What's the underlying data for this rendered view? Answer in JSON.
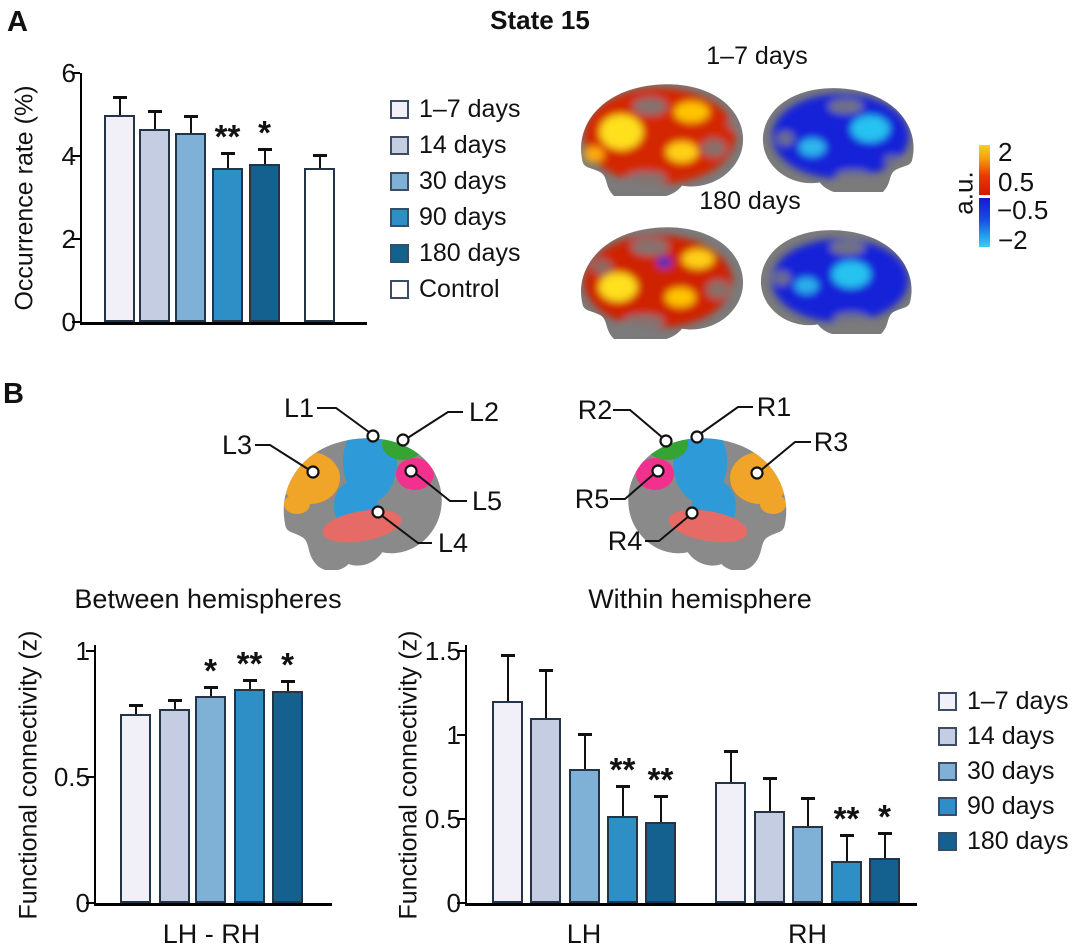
{
  "figure": {
    "panel_a_label": "A",
    "panel_b_label": "B",
    "title": "State 15"
  },
  "bar_colors": [
    "#f1eff7",
    "#c5cde3",
    "#7fb1d6",
    "#2e8fc6",
    "#14608f",
    "#ffffff"
  ],
  "bar_border_color": "#243447",
  "panel_a": {
    "legend_labels": [
      "1–7 days",
      "14 days",
      "30 days",
      "90 days",
      "180 days",
      "Control"
    ],
    "brain_maps": {
      "row1_label": "1–7 days",
      "row2_label": "180 days",
      "colorbar": {
        "label": "a.u.",
        "ticks": [
          "2",
          "0.5",
          "−0.5",
          "−2"
        ],
        "hot_top_color": "#f6cf27",
        "hot_bottom_color": "#d81600",
        "cold_top_color": "#1717d2",
        "cold_bottom_color": "#3bcdf6"
      }
    }
  },
  "panel_b": {
    "left_brain_labels": [
      "L1",
      "L2",
      "L3",
      "L4",
      "L5"
    ],
    "right_brain_labels": [
      "R1",
      "R2",
      "R3",
      "R4",
      "R5"
    ],
    "legend_labels": [
      "1–7 days",
      "14 days",
      "30 days",
      "90 days",
      "180 days"
    ],
    "region_colors": {
      "blue": "#2e9ad8",
      "green": "#35a435",
      "orange": "#f0a428",
      "magenta": "#f2308e",
      "salmon": "#e66a66",
      "cortex_gray": "#8a8a8a"
    }
  },
  "chart_data": [
    {
      "id": "occurrence",
      "type": "bar",
      "title": "State 15",
      "ylabel": "Occurrence rate (%)",
      "ylim": [
        0,
        6
      ],
      "yticks": [
        0,
        2,
        4,
        6
      ],
      "categories": [
        "1–7 days",
        "14 days",
        "30 days",
        "90 days",
        "180 days",
        "Control"
      ],
      "values": [
        5.0,
        4.65,
        4.55,
        3.7,
        3.8,
        3.7
      ],
      "errors": [
        0.45,
        0.45,
        0.45,
        0.4,
        0.4,
        0.35
      ],
      "significance": [
        "",
        "",
        "",
        "**",
        "*",
        ""
      ]
    },
    {
      "id": "between",
      "type": "bar",
      "title": "Between hemispheres",
      "ylabel": "Functional connectivity (z)",
      "xlabel": "LH - RH",
      "ylim": [
        0,
        1
      ],
      "yticks": [
        0,
        0.5,
        1
      ],
      "categories": [
        "1–7 days",
        "14 days",
        "30 days",
        "90 days",
        "180 days"
      ],
      "values": [
        0.75,
        0.77,
        0.82,
        0.85,
        0.84
      ],
      "errors": [
        0.04,
        0.04,
        0.04,
        0.04,
        0.045
      ],
      "significance": [
        "",
        "",
        "*",
        "**",
        "*"
      ]
    },
    {
      "id": "within",
      "type": "bar",
      "title": "Within hemisphere",
      "ylabel": "Functional connectivity (z)",
      "ylim": [
        0,
        1.5
      ],
      "yticks": [
        0,
        0.5,
        1,
        1.5
      ],
      "categories": [
        "1–7 days",
        "14 days",
        "30 days",
        "90 days",
        "180 days"
      ],
      "groups": [
        {
          "label": "LH",
          "values": [
            1.2,
            1.1,
            0.8,
            0.52,
            0.48
          ],
          "errors": [
            0.28,
            0.29,
            0.21,
            0.18,
            0.16
          ],
          "significance": [
            "",
            "",
            "",
            "**",
            "**"
          ]
        },
        {
          "label": "RH",
          "values": [
            0.72,
            0.55,
            0.46,
            0.25,
            0.27
          ],
          "errors": [
            0.19,
            0.2,
            0.17,
            0.16,
            0.15
          ],
          "significance": [
            "",
            "",
            "",
            "**",
            "*"
          ]
        }
      ]
    }
  ]
}
